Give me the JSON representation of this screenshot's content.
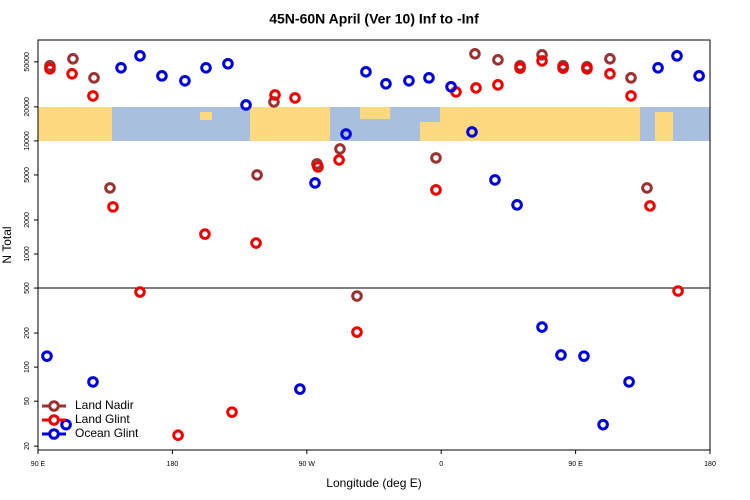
{
  "chart_data": {
    "type": "scatter",
    "title": "45N-60N April (Ver 10)   Inf to -Inf",
    "x_label": "Longitude (deg E)",
    "y_label": "N Total",
    "log_y": true,
    "legend": "bottom-left",
    "hline": 500,
    "xlim": [
      90,
      540
    ],
    "xticks": [
      {
        "value": 90,
        "label": "90 E"
      },
      180,
      {
        "value": 270,
        "label": "90 W"
      },
      {
        "value": 360,
        "label": "0"
      },
      {
        "value": 450,
        "label": "90 E"
      },
      {
        "value": 540,
        "label": "180"
      }
    ],
    "ylim": [
      18.5,
      78000
    ],
    "yticks": [
      20,
      50,
      100,
      200,
      500,
      1000,
      2000,
      5000,
      10000,
      20000,
      50000
    ],
    "series": [
      {
        "name": "Land Nadir",
        "color": "#993333",
        "x": [
          98,
          113.4,
          127.5,
          138.2,
          236.7,
          248,
          276.8,
          292.2,
          303.6,
          356.5,
          382.6,
          398,
          412.8,
          427.5,
          441.6,
          457.6,
          473,
          487.1,
          497.8
        ],
        "values": [
          46100,
          53200,
          36100,
          3840,
          5000,
          22100,
          6260,
          8490,
          425,
          7080,
          58900,
          52100,
          46100,
          57700,
          46100,
          45200,
          53200,
          36100,
          3840
        ]
      },
      {
        "name": "Land Glint",
        "color": "#ee0000",
        "x": [
          98,
          112.8,
          126.8,
          140.2,
          158.3,
          183.8,
          201.8,
          219.9,
          236,
          248.7,
          262.1,
          277.5,
          291.6,
          303.6,
          356.5,
          369.9,
          383.3,
          398,
          412.8,
          427.5,
          441.6,
          457.6,
          473,
          487.1,
          499.8,
          518.6
        ],
        "values": [
          43400,
          39200,
          25000,
          2610,
          461,
          25,
          1500,
          40,
          1250,
          25500,
          24000,
          5890,
          6790,
          204,
          3690,
          27100,
          29400,
          31300,
          44000,
          51000,
          44000,
          43400,
          39200,
          25000,
          2660,
          471
        ]
      },
      {
        "name": "Ocean Glint",
        "color": "#0000dd",
        "x": [
          96,
          108.8,
          126.8,
          145.6,
          158.3,
          173,
          188.4,
          202.5,
          217.2,
          229.3,
          265.4,
          275.5,
          296.3,
          309.6,
          323,
          338.4,
          351.8,
          366.6,
          380.6,
          396,
          410.8,
          427.5,
          440.2,
          455.6,
          468.4,
          485.8,
          505.2,
          517.9,
          532.7
        ],
        "values": [
          125,
          31,
          74,
          44300,
          56500,
          37600,
          34000,
          44300,
          48100,
          20800,
          63.9,
          4250,
          11500,
          40800,
          32000,
          34000,
          36100,
          30100,
          12000,
          4520,
          2720,
          226,
          128,
          125,
          31,
          74,
          44300,
          56500,
          37600
        ]
      }
    ]
  }
}
